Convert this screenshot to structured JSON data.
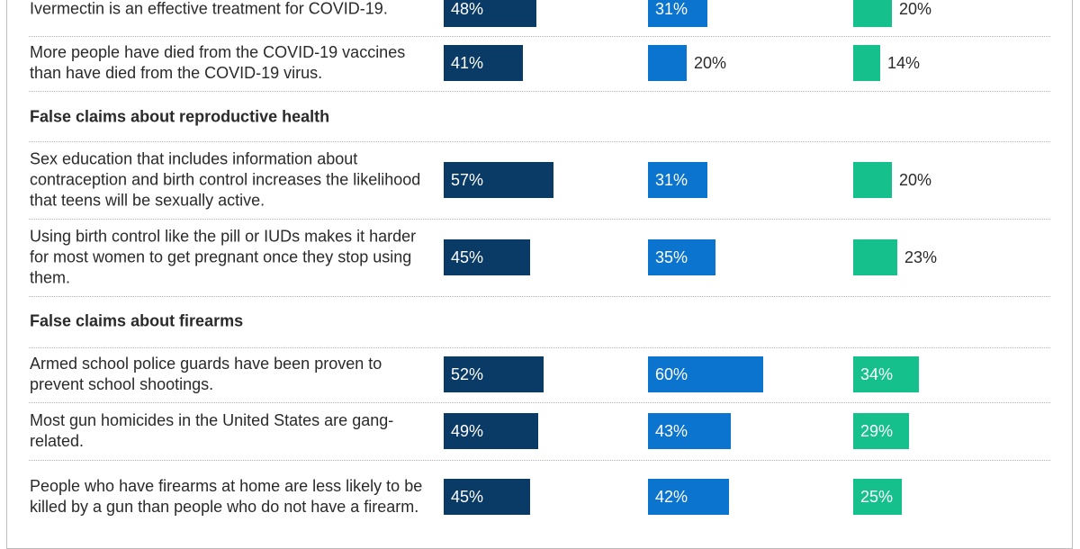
{
  "chart_data": {
    "type": "bar",
    "orientation": "horizontal",
    "title": "",
    "xlabel": "",
    "ylabel": "",
    "xlim": [
      0,
      100
    ],
    "series": [
      {
        "color": "#0a3a66"
      },
      {
        "color": "#0b74cf"
      },
      {
        "color": "#16c08c"
      }
    ],
    "rows": [
      {
        "kind": "claim",
        "text": "Ivermectin is an effective treatment for COVID-19.",
        "values": [
          48,
          31,
          20
        ]
      },
      {
        "kind": "claim",
        "text": "More people have died from the COVID-19 vaccines than have died from the COVID-19 virus.",
        "values": [
          41,
          20,
          14
        ]
      },
      {
        "kind": "section",
        "text": "False claims about reproductive health"
      },
      {
        "kind": "claim",
        "text": "Sex education that includes information about contraception and birth control increases the likelihood that teens will be sexually active.",
        "values": [
          57,
          31,
          20
        ]
      },
      {
        "kind": "claim",
        "text": "Using birth control like the pill or IUDs makes it harder for most women to get pregnant once they stop using them.",
        "values": [
          45,
          35,
          23
        ]
      },
      {
        "kind": "section",
        "text": "False claims about firearms"
      },
      {
        "kind": "claim",
        "text": "Armed school police guards have been proven to prevent school shootings.",
        "values": [
          52,
          60,
          34
        ]
      },
      {
        "kind": "claim",
        "text": "Most gun homicides in the United States are gang-related.",
        "values": [
          49,
          43,
          29
        ]
      },
      {
        "kind": "claim",
        "text": "People who have firearms at home are less likely to be killed by a gun than people who do not have a firearm.",
        "values": [
          45,
          42,
          25
        ]
      }
    ]
  }
}
